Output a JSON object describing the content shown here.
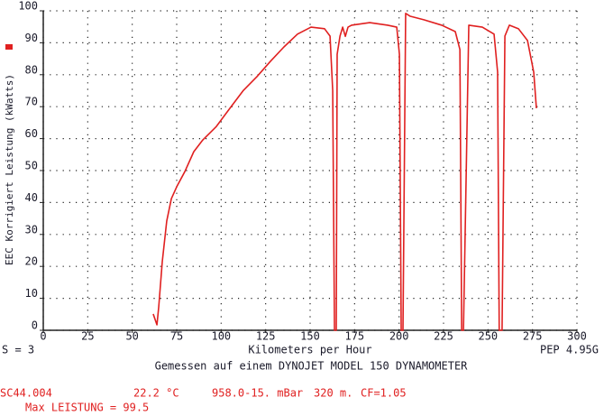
{
  "chart_data": {
    "type": "line",
    "ylabel": "EEC Korrigiert Leistung (kWatts)",
    "xlabel": "Kilometers per Hour",
    "left_note": "S = 3",
    "right_note": "PEP 4.95G",
    "subtitle": "Gemessen auf einem DYNOJET MODEL 150 DYNAMOMETER",
    "run_info": [
      "SC44.004",
      "22.2 °C",
      "958.0-15. mBar",
      "320 m.",
      "CF=1.05"
    ],
    "max_power": "Max LEISTUNG = 99.5",
    "xlim": [
      0,
      300
    ],
    "ylim": [
      0,
      100
    ],
    "xticks": [
      0,
      25,
      50,
      75,
      100,
      125,
      150,
      175,
      200,
      225,
      250,
      275,
      300
    ],
    "yticks": [
      0,
      10,
      20,
      30,
      40,
      50,
      60,
      70,
      80,
      90,
      100
    ],
    "grid": true,
    "x": [
      61.8,
      63.9,
      64.9,
      66.9,
      69.4,
      72.0,
      75.0,
      79.6,
      84.6,
      89.7,
      97.3,
      104.9,
      112.5,
      120.1,
      127.7,
      135.3,
      142.9,
      150.5,
      158.1,
      161.2,
      162.7,
      163.7,
      164.7,
      165.2,
      166.8,
      168.3,
      169.8,
      171.3,
      173.3,
      183.5,
      193.6,
      198.7,
      200.2,
      201.2,
      202.2,
      203.7,
      206.3,
      213.9,
      224.0,
      231.6,
      234.2,
      235.2,
      236.2,
      239.2,
      246.8,
      253.4,
      255.4,
      256.3,
      257.9,
      259.5,
      262.0,
      267.1,
      272.2,
      275.7,
      277.2
    ],
    "series": [
      {
        "color": "#e02020",
        "values": [
          5.1,
          1.7,
          7.3,
          21.5,
          34.2,
          41.2,
          44.9,
          49.7,
          55.9,
          59.6,
          63.8,
          69.5,
          75.1,
          79.4,
          84.2,
          88.7,
          92.7,
          94.9,
          94.4,
          92.1,
          75.0,
          0,
          0,
          86.4,
          92.1,
          94.9,
          92.0,
          94.9,
          95.5,
          96.3,
          95.5,
          94.9,
          86.4,
          0,
          0,
          99.2,
          98.3,
          97.2,
          95.5,
          93.5,
          87.9,
          0,
          0,
          95.5,
          94.9,
          92.7,
          80.8,
          0,
          0,
          92.1,
          95.5,
          94.4,
          90.7,
          80.8,
          69.5
        ]
      }
    ]
  }
}
